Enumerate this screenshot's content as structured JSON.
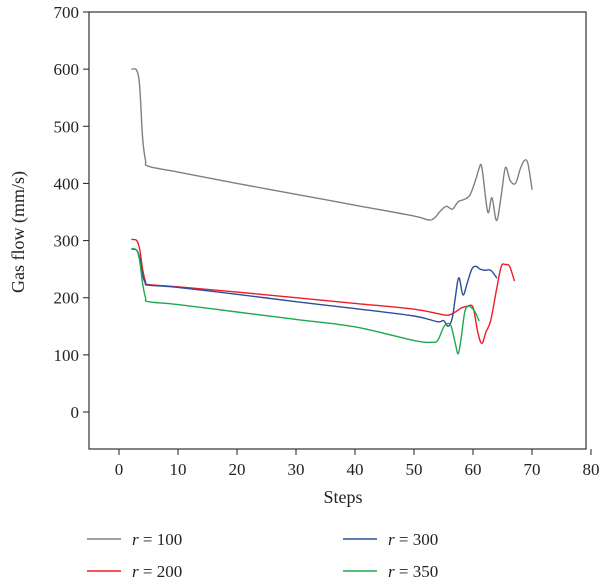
{
  "chart_data": {
    "type": "line",
    "title": "",
    "xlabel": "Steps",
    "ylabel": "Gas flow (mm/s)",
    "xlim": [
      -5,
      80
    ],
    "ylim": [
      -60,
      700
    ],
    "xticks": [
      0,
      10,
      20,
      30,
      40,
      50,
      60,
      70,
      80
    ],
    "yticks": [
      0,
      100,
      200,
      300,
      400,
      500,
      600,
      700
    ],
    "xtick_labels": [
      "0",
      "10",
      "20",
      "30",
      "40",
      "50",
      "60",
      "70",
      "80"
    ],
    "ytick_labels": [
      "0",
      "100",
      "200",
      "300",
      "400",
      "500",
      "600",
      "700"
    ],
    "grid": false,
    "legend_placement": "below",
    "series": [
      {
        "name": "r = 100",
        "var": "r",
        "eq": " = 100",
        "color": "#808080",
        "x": [
          2.2,
          3.0,
          3.5,
          4.0,
          4.5,
          5.0,
          10,
          20,
          30,
          40,
          50,
          52.5,
          53.5,
          54.5,
          55.5,
          56.5,
          57.5,
          58.5,
          59.5,
          60.5,
          61,
          61.5,
          62.5,
          63.2,
          64,
          64.8,
          65.5,
          66.3,
          67.2,
          68,
          68.7,
          69.3,
          70
        ],
        "y": [
          600,
          598,
          570,
          480,
          440,
          430,
          420,
          400,
          381,
          362,
          343,
          336,
          340,
          352,
          360,
          355,
          368,
          372,
          380,
          408,
          425,
          428,
          350,
          375,
          335,
          380,
          428,
          405,
          400,
          425,
          440,
          435,
          390
        ]
      },
      {
        "name": "r = 200",
        "var": "r",
        "eq": " = 200",
        "color": "#ee1c25",
        "x": [
          2.2,
          3.0,
          3.5,
          4.0,
          4.5,
          5.0,
          10,
          20,
          30,
          40,
          50,
          55,
          56,
          57,
          58,
          59,
          60,
          60.8,
          61.5,
          62.2,
          63,
          64,
          64.8,
          65.5,
          66.2,
          67
        ],
        "y": [
          302,
          300,
          285,
          250,
          228,
          223,
          219,
          210,
          200,
          190,
          180,
          170,
          170,
          175,
          182,
          185,
          183,
          140,
          120,
          140,
          160,
          215,
          255,
          258,
          255,
          230
        ]
      },
      {
        "name": "r = 300",
        "var": "r",
        "eq": " = 300",
        "color": "#2b4e9b",
        "x": [
          2.2,
          3.0,
          3.5,
          4.0,
          4.5,
          5.0,
          10,
          20,
          30,
          40,
          50,
          54,
          55,
          55.8,
          56.5,
          57,
          57.6,
          58.3,
          59,
          59.8,
          60.5,
          61.2,
          62,
          63,
          64
        ],
        "y": [
          285,
          283,
          270,
          240,
          225,
          222,
          218,
          206,
          193,
          181,
          168,
          158,
          160,
          150,
          165,
          200,
          235,
          205,
          225,
          250,
          255,
          250,
          248,
          248,
          235
        ]
      },
      {
        "name": "r = 350",
        "var": "r",
        "eq": " = 350",
        "color": "#1fa84f",
        "x": [
          2.2,
          3.0,
          3.5,
          4.0,
          4.5,
          5.0,
          10,
          20,
          30,
          40,
          50,
          53,
          54,
          55,
          55.7,
          56.3,
          57,
          57.5,
          58,
          58.6,
          59.2,
          60,
          60.5,
          61
        ],
        "y": [
          286,
          283,
          265,
          225,
          200,
          193,
          188,
          175,
          162,
          149,
          125,
          122,
          125,
          148,
          155,
          150,
          120,
          102,
          130,
          175,
          185,
          180,
          172,
          160
        ]
      }
    ]
  }
}
